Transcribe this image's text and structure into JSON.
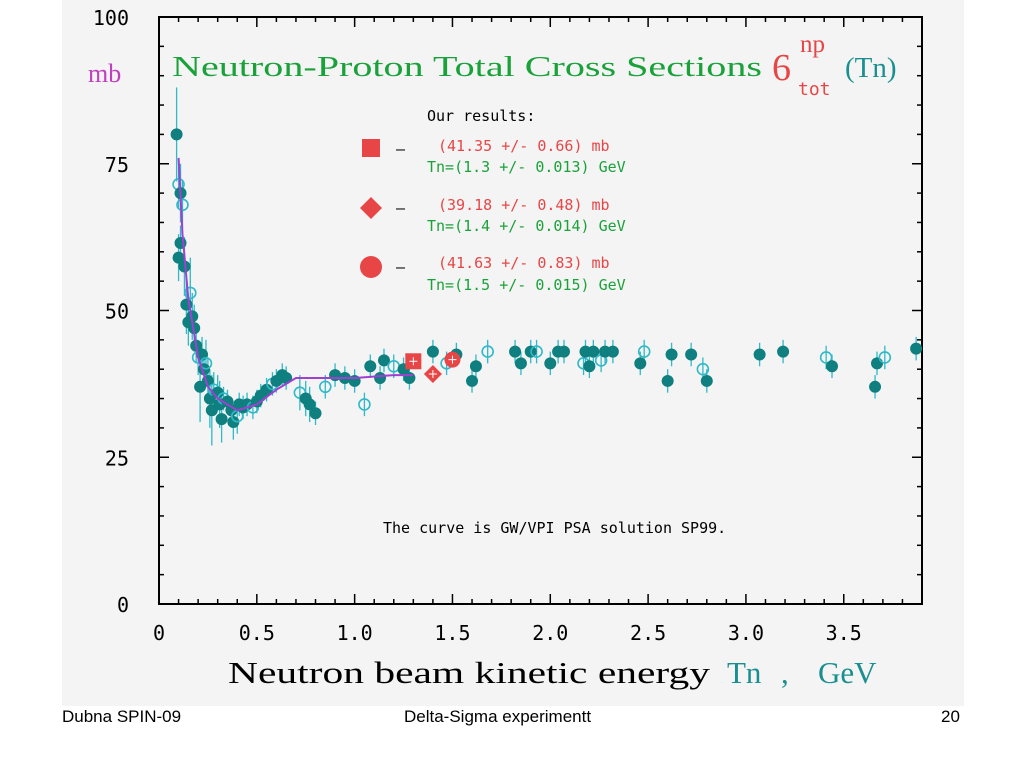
{
  "colors": {
    "title": "#1aa23a",
    "data_points": "#0f7f7f",
    "error_bars": "#2fb9c9",
    "curve": "#a040d0",
    "ours": "#e84646",
    "y_unit": "#c040c0",
    "tn": "#1a8f8f",
    "axis": "#000000"
  },
  "title": {
    "main": "Neutron-Proton Total Cross Sections",
    "sigma_symbol": "6",
    "superscript": "np",
    "subscript": "tot",
    "argument": "(Tn)"
  },
  "y_unit": "mb",
  "x_label": {
    "text": "Neutron beam kinetic energy",
    "var": "Tn",
    "sep": ",",
    "unit": "GeV"
  },
  "legend": {
    "heading": "Our results:",
    "dash": "—",
    "items": [
      {
        "marker": "square",
        "line1": "(41.35 +/- 0.66) mb",
        "line2": "Tn=(1.3 +/- 0.013) GeV"
      },
      {
        "marker": "diamond",
        "line1": "(39.18 +/- 0.48) mb",
        "line2": "Tn=(1.4 +/- 0.014) GeV"
      },
      {
        "marker": "circle",
        "line1": "(41.63 +/- 0.83) mb",
        "line2": "Tn=(1.5 +/- 0.015) GeV"
      }
    ]
  },
  "annotation": "The curve is GW/VPI PSA solution SP99.",
  "footer": {
    "left": "Dubna SPIN-09",
    "center": "Delta-Sigma experimentt",
    "right": "20"
  },
  "chart_data": {
    "type": "scatter",
    "xlim": [
      0,
      3.9
    ],
    "ylim": [
      0,
      100
    ],
    "x_ticks": [
      "0",
      "0.5",
      "1.0",
      "1.5",
      "2.0",
      "2.5",
      "3.0",
      "3.5"
    ],
    "x_tick_values": [
      0,
      0.5,
      1.0,
      1.5,
      2.0,
      2.5,
      3.0,
      3.5
    ],
    "y_ticks": [
      "0",
      "25",
      "50",
      "75",
      "100"
    ],
    "y_tick_values": [
      0,
      25,
      50,
      75,
      100
    ],
    "series": [
      {
        "role": "world data",
        "points": [
          {
            "x": 0.09,
            "y": 80,
            "e": 8
          },
          {
            "x": 0.1,
            "y": 71.5,
            "e": 4
          },
          {
            "x": 0.1,
            "y": 59,
            "e": 4
          },
          {
            "x": 0.11,
            "y": 70,
            "e": 5
          },
          {
            "x": 0.11,
            "y": 61.5,
            "e": 3
          },
          {
            "x": 0.12,
            "y": 68,
            "e": 4
          },
          {
            "x": 0.13,
            "y": 57.5,
            "e": 5
          },
          {
            "x": 0.14,
            "y": 51,
            "e": 5
          },
          {
            "x": 0.15,
            "y": 48,
            "e": 4
          },
          {
            "x": 0.16,
            "y": 53,
            "e": 6
          },
          {
            "x": 0.17,
            "y": 49,
            "e": 4
          },
          {
            "x": 0.18,
            "y": 47,
            "e": 4
          },
          {
            "x": 0.19,
            "y": 44,
            "e": 3
          },
          {
            "x": 0.2,
            "y": 42,
            "e": 3
          },
          {
            "x": 0.21,
            "y": 37,
            "e": 6
          },
          {
            "x": 0.22,
            "y": 42.5,
            "e": 3
          },
          {
            "x": 0.23,
            "y": 40,
            "e": 3
          },
          {
            "x": 0.24,
            "y": 41,
            "e": 4
          },
          {
            "x": 0.25,
            "y": 38,
            "e": 4
          },
          {
            "x": 0.26,
            "y": 35,
            "e": 5
          },
          {
            "x": 0.27,
            "y": 33,
            "e": 6
          },
          {
            "x": 0.28,
            "y": 36.5,
            "e": 3
          },
          {
            "x": 0.3,
            "y": 36,
            "e": 3
          },
          {
            "x": 0.31,
            "y": 34,
            "e": 4
          },
          {
            "x": 0.32,
            "y": 31.5,
            "e": 4
          },
          {
            "x": 0.33,
            "y": 35,
            "e": 2
          },
          {
            "x": 0.35,
            "y": 34.5,
            "e": 2
          },
          {
            "x": 0.37,
            "y": 33,
            "e": 2
          },
          {
            "x": 0.38,
            "y": 31,
            "e": 3
          },
          {
            "x": 0.4,
            "y": 32,
            "e": 3
          },
          {
            "x": 0.41,
            "y": 34,
            "e": 2
          },
          {
            "x": 0.43,
            "y": 33.5,
            "e": 2
          },
          {
            "x": 0.45,
            "y": 34,
            "e": 2
          },
          {
            "x": 0.48,
            "y": 33.5,
            "e": 2
          },
          {
            "x": 0.5,
            "y": 34.5,
            "e": 2
          },
          {
            "x": 0.52,
            "y": 35.5,
            "e": 2
          },
          {
            "x": 0.55,
            "y": 36.5,
            "e": 2
          },
          {
            "x": 0.58,
            "y": 37.5,
            "e": 2
          },
          {
            "x": 0.6,
            "y": 38,
            "e": 2
          },
          {
            "x": 0.63,
            "y": 39,
            "e": 2
          },
          {
            "x": 0.65,
            "y": 38.5,
            "e": 2
          },
          {
            "x": 0.72,
            "y": 36,
            "e": 3
          },
          {
            "x": 0.75,
            "y": 35,
            "e": 3
          },
          {
            "x": 0.77,
            "y": 34,
            "e": 3
          },
          {
            "x": 0.8,
            "y": 32.5,
            "e": 2
          },
          {
            "x": 0.85,
            "y": 37,
            "e": 2
          },
          {
            "x": 0.9,
            "y": 39,
            "e": 2
          },
          {
            "x": 0.95,
            "y": 38.5,
            "e": 2
          },
          {
            "x": 1.0,
            "y": 38,
            "e": 2
          },
          {
            "x": 1.05,
            "y": 34,
            "e": 2
          },
          {
            "x": 1.08,
            "y": 40.5,
            "e": 2
          },
          {
            "x": 1.13,
            "y": 38.5,
            "e": 2
          },
          {
            "x": 1.15,
            "y": 41.5,
            "e": 2
          },
          {
            "x": 1.2,
            "y": 40.5,
            "e": 2
          },
          {
            "x": 1.25,
            "y": 40,
            "e": 2
          },
          {
            "x": 1.28,
            "y": 38.5,
            "e": 2
          },
          {
            "x": 1.4,
            "y": 43,
            "e": 2
          },
          {
            "x": 1.47,
            "y": 41,
            "e": 2
          },
          {
            "x": 1.52,
            "y": 42.5,
            "e": 2
          },
          {
            "x": 1.6,
            "y": 38,
            "e": 2
          },
          {
            "x": 1.62,
            "y": 40.5,
            "e": 2
          },
          {
            "x": 1.68,
            "y": 43,
            "e": 2
          },
          {
            "x": 1.82,
            "y": 43,
            "e": 2
          },
          {
            "x": 1.85,
            "y": 41,
            "e": 2
          },
          {
            "x": 1.9,
            "y": 43,
            "e": 2
          },
          {
            "x": 1.93,
            "y": 43,
            "e": 2
          },
          {
            "x": 2.0,
            "y": 41,
            "e": 2
          },
          {
            "x": 2.04,
            "y": 43,
            "e": 2
          },
          {
            "x": 2.07,
            "y": 43,
            "e": 2
          },
          {
            "x": 2.17,
            "y": 41,
            "e": 2
          },
          {
            "x": 2.18,
            "y": 43,
            "e": 2
          },
          {
            "x": 2.2,
            "y": 40.5,
            "e": 2
          },
          {
            "x": 2.22,
            "y": 43,
            "e": 2
          },
          {
            "x": 2.26,
            "y": 41.5,
            "e": 2
          },
          {
            "x": 2.28,
            "y": 43,
            "e": 2
          },
          {
            "x": 2.32,
            "y": 43,
            "e": 2
          },
          {
            "x": 2.46,
            "y": 41,
            "e": 2
          },
          {
            "x": 2.48,
            "y": 43,
            "e": 2
          },
          {
            "x": 2.6,
            "y": 38,
            "e": 2
          },
          {
            "x": 2.62,
            "y": 42.5,
            "e": 2
          },
          {
            "x": 2.72,
            "y": 42.5,
            "e": 2
          },
          {
            "x": 2.78,
            "y": 40,
            "e": 2
          },
          {
            "x": 2.8,
            "y": 38,
            "e": 2
          },
          {
            "x": 3.07,
            "y": 42.5,
            "e": 2
          },
          {
            "x": 3.19,
            "y": 43,
            "e": 2
          },
          {
            "x": 3.41,
            "y": 42,
            "e": 2
          },
          {
            "x": 3.44,
            "y": 40.5,
            "e": 2
          },
          {
            "x": 3.66,
            "y": 37,
            "e": 2
          },
          {
            "x": 3.67,
            "y": 41,
            "e": 2
          },
          {
            "x": 3.71,
            "y": 42,
            "e": 2
          },
          {
            "x": 3.87,
            "y": 43.5,
            "e": 2
          }
        ]
      },
      {
        "role": "GW/VPI PSA solution SP99 curve",
        "points": [
          {
            "x": 0.1,
            "y": 76
          },
          {
            "x": 0.12,
            "y": 63
          },
          {
            "x": 0.15,
            "y": 52
          },
          {
            "x": 0.2,
            "y": 42
          },
          {
            "x": 0.25,
            "y": 37
          },
          {
            "x": 0.3,
            "y": 35
          },
          {
            "x": 0.4,
            "y": 33
          },
          {
            "x": 0.5,
            "y": 34
          },
          {
            "x": 0.6,
            "y": 36.5
          },
          {
            "x": 0.7,
            "y": 38.5
          },
          {
            "x": 0.8,
            "y": 38.5
          },
          {
            "x": 1.0,
            "y": 38.5
          },
          {
            "x": 1.2,
            "y": 39
          },
          {
            "x": 1.3,
            "y": 39
          }
        ]
      },
      {
        "role": "our results",
        "points": [
          {
            "x": 1.3,
            "y": 41.35,
            "e": 0.66,
            "marker": "square"
          },
          {
            "x": 1.4,
            "y": 39.18,
            "e": 0.48,
            "marker": "diamond"
          },
          {
            "x": 1.5,
            "y": 41.63,
            "e": 0.83,
            "marker": "circle"
          }
        ]
      }
    ]
  }
}
